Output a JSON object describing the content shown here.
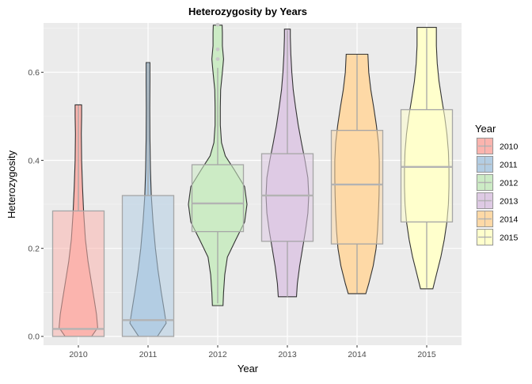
{
  "chart_data": {
    "type": "violin",
    "title": "Heterozygosity by Years",
    "xlabel": "Year",
    "ylabel": "Heterozygosity",
    "ylim": [
      -0.02,
      0.712
    ],
    "yticks": [
      0.0,
      0.2,
      0.4,
      0.6
    ],
    "ytick_labels": [
      "0.0",
      "0.2",
      "0.4",
      "0.6"
    ],
    "categories": [
      "2010",
      "2011",
      "2012",
      "2013",
      "2014",
      "2015"
    ],
    "colors": [
      "#FBB4AE",
      "#B3CDE3",
      "#CCEBC5",
      "#DECBE4",
      "#FED9A6",
      "#FFFFCC"
    ],
    "grid": true,
    "legend": {
      "title": "Year",
      "position": "right"
    },
    "series": [
      {
        "name": "2010",
        "box": {
          "q1": 0.0,
          "median": 0.017,
          "q3": 0.285,
          "whisker_low": 0.0,
          "whisker_high": 0.525
        },
        "outliers": [],
        "violin": {
          "min": 0.0,
          "max": 0.526,
          "profile": [
            [
              0.0,
              0.45
            ],
            [
              0.02,
              0.66
            ],
            [
              0.05,
              0.62
            ],
            [
              0.08,
              0.55
            ],
            [
              0.12,
              0.45
            ],
            [
              0.17,
              0.33
            ],
            [
              0.22,
              0.24
            ],
            [
              0.28,
              0.18
            ],
            [
              0.34,
              0.14
            ],
            [
              0.4,
              0.11
            ],
            [
              0.46,
              0.1
            ],
            [
              0.5,
              0.11
            ],
            [
              0.526,
              0.11
            ]
          ]
        }
      },
      {
        "name": "2011",
        "box": {
          "q1": 0.0,
          "median": 0.037,
          "q3": 0.32,
          "whisker_low": 0.0,
          "whisker_high": 0.62
        },
        "outliers": [],
        "violin": {
          "min": 0.0,
          "max": 0.622,
          "profile": [
            [
              0.0,
              0.32
            ],
            [
              0.03,
              0.62
            ],
            [
              0.06,
              0.55
            ],
            [
              0.1,
              0.45
            ],
            [
              0.15,
              0.34
            ],
            [
              0.2,
              0.25
            ],
            [
              0.26,
              0.17
            ],
            [
              0.32,
              0.11
            ],
            [
              0.38,
              0.08
            ],
            [
              0.45,
              0.065
            ],
            [
              0.52,
              0.06
            ],
            [
              0.58,
              0.065
            ],
            [
              0.622,
              0.065
            ]
          ]
        }
      },
      {
        "name": "2012",
        "box": {
          "q1": 0.238,
          "median": 0.302,
          "q3": 0.39,
          "whisker_low": 0.075,
          "whisker_high": 0.61
        },
        "outliers": [
          0.63,
          0.652,
          0.708
        ],
        "violin": {
          "min": 0.07,
          "max": 0.707,
          "profile": [
            [
              0.07,
              0.18
            ],
            [
              0.1,
              0.2
            ],
            [
              0.14,
              0.24
            ],
            [
              0.18,
              0.33
            ],
            [
              0.22,
              0.62
            ],
            [
              0.26,
              0.92
            ],
            [
              0.3,
              1.0
            ],
            [
              0.34,
              0.92
            ],
            [
              0.38,
              0.55
            ],
            [
              0.41,
              0.26
            ],
            [
              0.44,
              0.13
            ],
            [
              0.48,
              0.09
            ],
            [
              0.52,
              0.09
            ],
            [
              0.56,
              0.1
            ],
            [
              0.6,
              0.16
            ],
            [
              0.63,
              0.2
            ],
            [
              0.66,
              0.16
            ],
            [
              0.69,
              0.16
            ],
            [
              0.707,
              0.15
            ]
          ]
        }
      },
      {
        "name": "2013",
        "box": {
          "q1": 0.216,
          "median": 0.32,
          "q3": 0.415,
          "whisker_low": 0.09,
          "whisker_high": 0.695
        },
        "outliers": [],
        "violin": {
          "min": 0.09,
          "max": 0.698,
          "profile": [
            [
              0.09,
              0.31
            ],
            [
              0.12,
              0.34
            ],
            [
              0.16,
              0.42
            ],
            [
              0.2,
              0.52
            ],
            [
              0.24,
              0.62
            ],
            [
              0.28,
              0.7
            ],
            [
              0.32,
              0.73
            ],
            [
              0.36,
              0.7
            ],
            [
              0.4,
              0.6
            ],
            [
              0.44,
              0.48
            ],
            [
              0.48,
              0.37
            ],
            [
              0.52,
              0.28
            ],
            [
              0.56,
              0.2
            ],
            [
              0.6,
              0.15
            ],
            [
              0.64,
              0.12
            ],
            [
              0.68,
              0.1
            ],
            [
              0.698,
              0.1
            ]
          ]
        }
      },
      {
        "name": "2014",
        "box": {
          "q1": 0.21,
          "median": 0.345,
          "q3": 0.468,
          "whisker_low": 0.098,
          "whisker_high": 0.64
        },
        "outliers": [],
        "violin": {
          "min": 0.097,
          "max": 0.641,
          "profile": [
            [
              0.097,
              0.3
            ],
            [
              0.12,
              0.4
            ],
            [
              0.16,
              0.55
            ],
            [
              0.2,
              0.65
            ],
            [
              0.24,
              0.7
            ],
            [
              0.28,
              0.73
            ],
            [
              0.32,
              0.75
            ],
            [
              0.36,
              0.76
            ],
            [
              0.4,
              0.76
            ],
            [
              0.44,
              0.73
            ],
            [
              0.48,
              0.66
            ],
            [
              0.52,
              0.57
            ],
            [
              0.56,
              0.47
            ],
            [
              0.6,
              0.4
            ],
            [
              0.641,
              0.37
            ]
          ]
        }
      },
      {
        "name": "2015",
        "box": {
          "q1": 0.26,
          "median": 0.385,
          "q3": 0.515,
          "whisker_low": 0.11,
          "whisker_high": 0.7
        },
        "outliers": [],
        "violin": {
          "min": 0.108,
          "max": 0.702,
          "profile": [
            [
              0.108,
              0.21
            ],
            [
              0.14,
              0.33
            ],
            [
              0.18,
              0.48
            ],
            [
              0.22,
              0.6
            ],
            [
              0.26,
              0.69
            ],
            [
              0.3,
              0.74
            ],
            [
              0.34,
              0.76
            ],
            [
              0.38,
              0.76
            ],
            [
              0.42,
              0.74
            ],
            [
              0.46,
              0.69
            ],
            [
              0.5,
              0.61
            ],
            [
              0.54,
              0.51
            ],
            [
              0.58,
              0.42
            ],
            [
              0.62,
              0.36
            ],
            [
              0.66,
              0.33
            ],
            [
              0.702,
              0.33
            ]
          ]
        }
      }
    ]
  }
}
